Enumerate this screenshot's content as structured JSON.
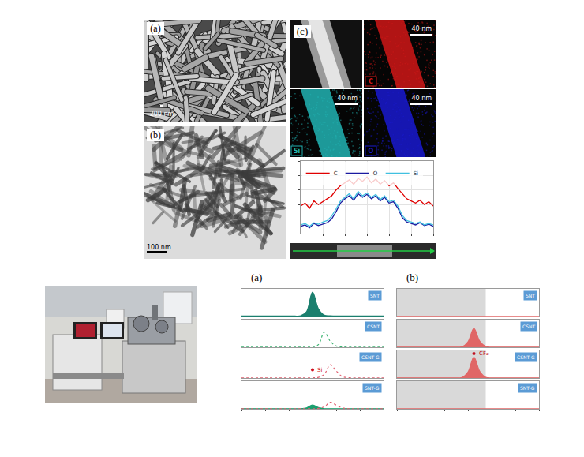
{
  "figure": {
    "sem": {
      "label": "(a)",
      "scale_bar": "200 nm"
    },
    "tem": {
      "label": "(b)",
      "scale_bar": "100 nm"
    },
    "eds": {
      "label": "(c)",
      "maps": [
        {
          "element": "C",
          "color": "#d01818",
          "scale_bar": "40 nm"
        },
        {
          "element": "Si",
          "color": "#22b4b4",
          "scale_bar": "40 nm"
        },
        {
          "element": "O",
          "color": "#1a1ad0",
          "scale_bar": "40 nm"
        }
      ]
    }
  },
  "chart_data": [
    {
      "type": "line",
      "legend": "top left",
      "grid": true,
      "tick_labels": false,
      "x": [
        0,
        1,
        2,
        3,
        4,
        5,
        6,
        7,
        8,
        9,
        10,
        11,
        12,
        13,
        14,
        15,
        16,
        17,
        18,
        19,
        20,
        21,
        22,
        23,
        24,
        25,
        26,
        27,
        28,
        29,
        30
      ],
      "xlim": [
        0,
        30
      ],
      "xticks": [
        0,
        5,
        10,
        15,
        20,
        25,
        30
      ],
      "ylim": [
        0,
        100
      ],
      "yticks": [
        0,
        20,
        40,
        60,
        80,
        100
      ],
      "series": [
        {
          "name": "C",
          "color": "#e00000",
          "values": [
            38,
            42,
            35,
            45,
            40,
            44,
            48,
            52,
            60,
            66,
            70,
            74,
            68,
            76,
            72,
            78,
            70,
            75,
            68,
            73,
            66,
            70,
            62,
            55,
            48,
            45,
            42,
            46,
            40,
            44,
            38
          ]
        },
        {
          "name": "O",
          "color": "#1a1aa0",
          "values": [
            10,
            12,
            8,
            14,
            11,
            13,
            15,
            20,
            30,
            42,
            48,
            52,
            46,
            55,
            50,
            54,
            48,
            52,
            45,
            50,
            42,
            44,
            35,
            22,
            16,
            14,
            12,
            15,
            11,
            13,
            10
          ]
        },
        {
          "name": "Si",
          "color": "#40c0e0",
          "values": [
            12,
            14,
            10,
            15,
            13,
            16,
            18,
            24,
            34,
            45,
            50,
            55,
            48,
            58,
            52,
            56,
            50,
            54,
            47,
            52,
            44,
            46,
            38,
            25,
            18,
            16,
            14,
            16,
            12,
            14,
            12
          ]
        }
      ]
    },
    {
      "type": "line",
      "label": "(a)",
      "tick_labels": false,
      "x": [
        0,
        1,
        2,
        3,
        4,
        5,
        6,
        7,
        8,
        9,
        10,
        11,
        12,
        13,
        14,
        15,
        16,
        17,
        18,
        19,
        20,
        21,
        22,
        23,
        24
      ],
      "xlim": [
        0,
        24
      ],
      "xticks": [
        0,
        4,
        8,
        12,
        16,
        20,
        24
      ],
      "ylim": [
        0,
        100
      ],
      "yticks": [
        0,
        50,
        100
      ],
      "subplots": [
        {
          "label": "SNT",
          "series": [
            {
              "type": "area",
              "color": "#1b7f6e",
              "line_style": "solid",
              "values": [
                2,
                2,
                2,
                2,
                2,
                2,
                2,
                2,
                2,
                2,
                3,
                18,
                88,
                28,
                5,
                3,
                2,
                2,
                2,
                2,
                2,
                2,
                2,
                2,
                2
              ]
            }
          ]
        },
        {
          "label": "CSNT",
          "series": [
            {
              "type": "line",
              "color": "#3cb371",
              "line_style": "dot",
              "values": [
                1,
                1,
                1,
                1,
                1,
                1,
                1,
                1,
                1,
                1,
                1,
                1,
                2,
                10,
                55,
                22,
                5,
                2,
                1,
                1,
                1,
                1,
                1,
                1,
                1
              ]
            }
          ]
        },
        {
          "label": "CSNT-G",
          "series": [
            {
              "type": "line",
              "color": "#e06070",
              "line_style": "dot",
              "values": [
                1,
                1,
                1,
                1,
                1,
                1,
                1,
                1,
                1,
                1,
                1,
                1,
                1,
                3,
                14,
                48,
                26,
                6,
                2,
                1,
                1,
                1,
                1,
                1,
                1
              ]
            }
          ],
          "annotations": [
            {
              "text": "Si",
              "x": 12,
              "y": 30,
              "color": "#d01020"
            }
          ]
        },
        {
          "label": "SNT-G",
          "series": [
            {
              "type": "area",
              "color": "#1b9f6e",
              "line_style": "solid",
              "values": [
                1,
                1,
                1,
                1,
                1,
                1,
                1,
                1,
                1,
                1,
                1,
                4,
                14,
                5,
                1,
                1,
                1,
                1,
                1,
                1,
                1,
                1,
                1,
                1,
                1
              ]
            },
            {
              "type": "line",
              "color": "#e06070",
              "line_style": "dot",
              "values": [
                1,
                1,
                1,
                1,
                1,
                1,
                1,
                1,
                1,
                1,
                1,
                1,
                1,
                2,
                8,
                24,
                14,
                4,
                1,
                1,
                1,
                1,
                1,
                1,
                1
              ]
            }
          ]
        }
      ]
    },
    {
      "type": "line",
      "label": "(b)",
      "tick_labels": false,
      "x": [
        0,
        1,
        2,
        3,
        4,
        5,
        6,
        7,
        8,
        9,
        10,
        11,
        12,
        13,
        14,
        15,
        16,
        17,
        18,
        19,
        20,
        21,
        22,
        23,
        24
      ],
      "xlim": [
        0,
        24
      ],
      "xticks": [
        0,
        4,
        8,
        12,
        16,
        20,
        24
      ],
      "ylim": [
        0,
        100
      ],
      "yticks": [
        0,
        50,
        100
      ],
      "shaded_region": [
        0,
        15
      ],
      "subplots": [
        {
          "label": "SNT",
          "series": [
            {
              "type": "line",
              "color": "#e06666",
              "line_style": "solid",
              "values": [
                1,
                1,
                1,
                1,
                1,
                1,
                1,
                1,
                1,
                1,
                1,
                1,
                1,
                1,
                1,
                1,
                1,
                1,
                1,
                1,
                1,
                1,
                1,
                1,
                1
              ]
            }
          ]
        },
        {
          "label": "CSNT",
          "series": [
            {
              "type": "area",
              "color": "#e06666",
              "line_style": "solid",
              "values": [
                1,
                1,
                1,
                1,
                1,
                1,
                1,
                1,
                1,
                1,
                1,
                2,
                20,
                68,
                22,
                3,
                1,
                1,
                1,
                1,
                1,
                1,
                1,
                1,
                1
              ]
            }
          ]
        },
        {
          "label": "CSNT-G",
          "series": [
            {
              "type": "area",
              "color": "#e06666",
              "line_style": "solid",
              "values": [
                1,
                1,
                1,
                1,
                1,
                1,
                1,
                1,
                1,
                1,
                1,
                2,
                22,
                75,
                24,
                3,
                1,
                1,
                1,
                1,
                1,
                1,
                1,
                1,
                1
              ]
            }
          ],
          "annotations": [
            {
              "text": "CF₂",
              "x": 13,
              "y": 88,
              "color": "#c01020"
            }
          ]
        },
        {
          "label": "SNT-G",
          "series": [
            {
              "type": "line",
              "color": "#e06666",
              "line_style": "solid",
              "values": [
                1,
                1,
                1,
                1,
                1,
                1,
                1,
                1,
                1,
                1,
                1,
                1,
                1,
                1,
                1,
                1,
                1,
                1,
                1,
                1,
                1,
                1,
                1,
                1,
                1
              ]
            }
          ]
        }
      ]
    }
  ]
}
